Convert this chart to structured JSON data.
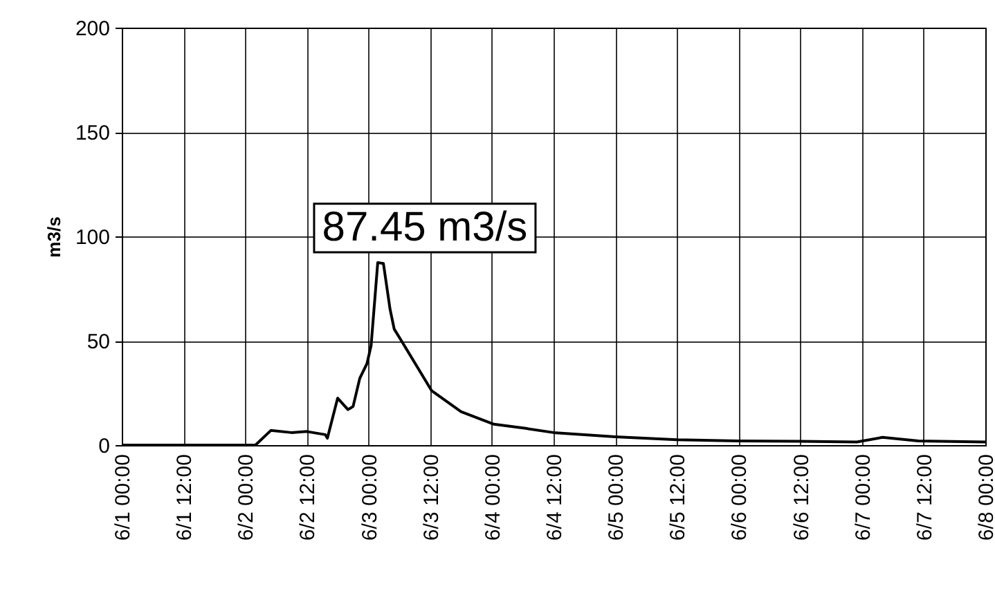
{
  "chart_data": {
    "type": "line",
    "ylabel": "m3/s",
    "x": [
      "--06-01T00:00",
      "--06-02T02:00",
      "--06-02T05:00",
      "--06-02T09:00",
      "--06-02T12:00",
      "--06-02T15:36",
      "--06-02T16:00",
      "--06-02T18:00",
      "--06-02T20:00",
      "--06-02T21:00",
      "--06-02T22:18",
      "--06-02T23:42",
      "--06-03T00:30",
      "--06-03T01:48",
      "--06-03T02:54",
      "--06-03T04:12",
      "--06-03T05:00",
      "--06-03T06:24",
      "--06-03T12:18",
      "--06-03T18:00",
      "--06-04T00:24",
      "--06-04T06:36",
      "--06-04T12:00",
      "--06-05T00:00",
      "--06-05T12:00",
      "--06-06T00:00",
      "--06-06T12:00",
      "--06-06T23:00",
      "--06-07T04:00",
      "--06-07T11:00",
      "--06-08T00:00"
    ],
    "series": [
      {
        "color": "#000000",
        "values": [
          0,
          0,
          7,
          6,
          6.5,
          5,
          3.3,
          22.5,
          17,
          18.5,
          32,
          39,
          47.6,
          87.45,
          87,
          65,
          55.6,
          50,
          26,
          16,
          10,
          8,
          6,
          4,
          2.6,
          2,
          1.8,
          1.5,
          3.7,
          2,
          1.5
        ]
      }
    ],
    "xlim": [
      "--06-01T00:00",
      "--06-08T00:00"
    ],
    "xticks": [
      {
        "value": "--06-01T00:00",
        "label": "6/1 00:00"
      },
      {
        "value": "--06-01T12:00",
        "label": "6/1 12:00"
      },
      {
        "value": "--06-02T00:00",
        "label": "6/2 00:00"
      },
      {
        "value": "--06-02T12:00",
        "label": "6/2 12:00"
      },
      {
        "value": "--06-03T00:00",
        "label": "6/3 00:00"
      },
      {
        "value": "--06-03T12:00",
        "label": "6/3 12:00"
      },
      {
        "value": "--06-04T00:00",
        "label": "6/4 00:00"
      },
      {
        "value": "--06-04T12:00",
        "label": "6/4 12:00"
      },
      {
        "value": "--06-05T00:00",
        "label": "6/5 00:00"
      },
      {
        "value": "--06-05T12:00",
        "label": "6/5 12:00"
      },
      {
        "value": "--06-06T00:00",
        "label": "6/6 00:00"
      },
      {
        "value": "--06-06T12:00",
        "label": "6/6 12:00"
      },
      {
        "value": "--06-07T00:00",
        "label": "6/7 00:00"
      },
      {
        "value": "--06-07T12:00",
        "label": "6/7 12:00"
      },
      {
        "value": "--06-08T00:00",
        "label": "6/8 00:00"
      }
    ],
    "ylim": [
      0,
      200
    ],
    "yticks": [
      0,
      50,
      100,
      150,
      200
    ],
    "grid": true,
    "annotations": [
      {
        "text": "87.45 m3/s",
        "x": "--06-03T01:48",
        "y": 87.45
      }
    ]
  }
}
